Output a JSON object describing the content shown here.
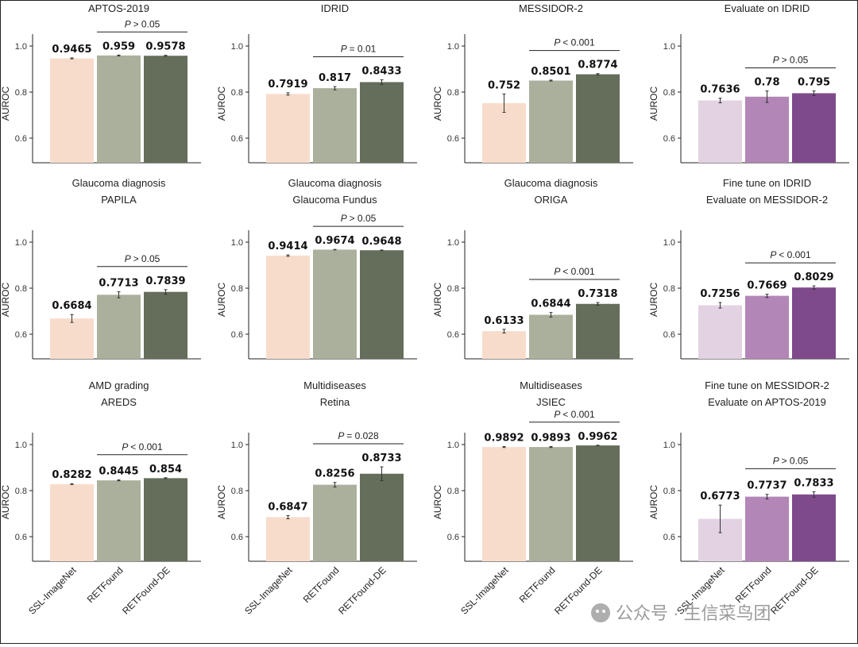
{
  "palettes": {
    "green": [
      "#f8dccb",
      "#aab09b",
      "#646e5a"
    ],
    "purple": [
      "#e2d2e2",
      "#b286b6",
      "#7f4a8c"
    ]
  },
  "watermark": "公众号 · 生信菜鸟团",
  "chart_data": [
    {
      "type": "bar",
      "title": [
        "APTOS-2019"
      ],
      "ylabel": "AUROC",
      "ylim": [
        0.5,
        1.0
      ],
      "yticks": [
        "0.6",
        "0.8",
        "1.0"
      ],
      "categories": [
        "SSL-ImageNet",
        "RETFound",
        "RETFound-DE"
      ],
      "values": [
        0.9465,
        0.959,
        0.9578
      ],
      "value_labels": [
        "0.9465",
        "0.959",
        "0.9578"
      ],
      "errors": [
        0.002,
        0.002,
        0.002
      ],
      "pvalue": "> 0.05",
      "palette": "green",
      "show_xlabels": false
    },
    {
      "type": "bar",
      "title": [
        "IDRID"
      ],
      "ylabel": "AUROC",
      "ylim": [
        0.5,
        1.0
      ],
      "yticks": [
        "0.6",
        "0.8",
        "1.0"
      ],
      "categories": [
        "SSL-ImageNet",
        "RETFound",
        "RETFound-DE"
      ],
      "values": [
        0.7919,
        0.817,
        0.8433
      ],
      "value_labels": [
        "0.7919",
        "0.817",
        "0.8433"
      ],
      "errors": [
        0.005,
        0.007,
        0.01
      ],
      "pvalue": "= 0.01",
      "palette": "green",
      "show_xlabels": false
    },
    {
      "type": "bar",
      "title": [
        "MESSIDOR-2"
      ],
      "ylabel": "AUROC",
      "ylim": [
        0.5,
        1.0
      ],
      "yticks": [
        "0.6",
        "0.8",
        "1.0"
      ],
      "categories": [
        "SSL-ImageNet",
        "RETFound",
        "RETFound-DE"
      ],
      "values": [
        0.752,
        0.8501,
        0.8774
      ],
      "value_labels": [
        "0.752",
        "0.8501",
        "0.8774"
      ],
      "errors": [
        0.04,
        0.002,
        0.003
      ],
      "pvalue": "< 0.001",
      "palette": "green",
      "show_xlabels": false
    },
    {
      "type": "bar",
      "title": [
        "Evaluate on IDRID"
      ],
      "ylabel": "AUROC",
      "ylim": [
        0.5,
        1.0
      ],
      "yticks": [
        "0.6",
        "0.8",
        "1.0"
      ],
      "categories": [
        "SSL-ImageNet",
        "RETFound",
        "RETFound-DE"
      ],
      "values": [
        0.7636,
        0.78,
        0.795
      ],
      "value_labels": [
        "0.7636",
        "0.78",
        "0.795"
      ],
      "errors": [
        0.01,
        0.025,
        0.01
      ],
      "pvalue": "> 0.05",
      "palette": "purple",
      "show_xlabels": false
    },
    {
      "type": "bar",
      "title": [
        "Glaucoma diagnosis",
        "PAPILA"
      ],
      "ylabel": "AUROC",
      "ylim": [
        0.5,
        1.0
      ],
      "yticks": [
        "0.6",
        "0.8",
        "1.0"
      ],
      "categories": [
        "SSL-ImageNet",
        "RETFound",
        "RETFound-DE"
      ],
      "values": [
        0.6684,
        0.7713,
        0.7839
      ],
      "value_labels": [
        "0.6684",
        "0.7713",
        "0.7839"
      ],
      "errors": [
        0.017,
        0.013,
        0.01
      ],
      "pvalue": "> 0.05",
      "palette": "green",
      "show_xlabels": false
    },
    {
      "type": "bar",
      "title": [
        "Glaucoma diagnosis",
        "Glaucoma Fundus"
      ],
      "ylabel": "AUROC",
      "ylim": [
        0.5,
        1.0
      ],
      "yticks": [
        "0.6",
        "0.8",
        "1.0"
      ],
      "categories": [
        "SSL-ImageNet",
        "RETFound",
        "RETFound-DE"
      ],
      "values": [
        0.9414,
        0.9674,
        0.9648
      ],
      "value_labels": [
        "0.9414",
        "0.9674",
        "0.9648"
      ],
      "errors": [
        0.003,
        0.001,
        0.001
      ],
      "pvalue": "> 0.05",
      "palette": "green",
      "show_xlabels": false
    },
    {
      "type": "bar",
      "title": [
        "Glaucoma diagnosis",
        "ORIGA"
      ],
      "ylabel": "AUROC",
      "ylim": [
        0.5,
        1.0
      ],
      "yticks": [
        "0.6",
        "0.8",
        "1.0"
      ],
      "categories": [
        "SSL-ImageNet",
        "RETFound",
        "RETFound-DE"
      ],
      "values": [
        0.6133,
        0.6844,
        0.7318
      ],
      "value_labels": [
        "0.6133",
        "0.6844",
        "0.7318"
      ],
      "errors": [
        0.008,
        0.01,
        0.006
      ],
      "pvalue": "< 0.001",
      "palette": "green",
      "show_xlabels": false
    },
    {
      "type": "bar",
      "title": [
        "Fine tune on IDRID",
        "Evaluate on MESSIDOR-2"
      ],
      "ylabel": "AUROC",
      "ylim": [
        0.5,
        1.0
      ],
      "yticks": [
        "0.6",
        "0.8",
        "1.0"
      ],
      "categories": [
        "SSL-ImageNet",
        "RETFound",
        "RETFound-DE"
      ],
      "values": [
        0.7256,
        0.7669,
        0.8029
      ],
      "value_labels": [
        "0.7256",
        "0.7669",
        "0.8029"
      ],
      "errors": [
        0.012,
        0.007,
        0.007
      ],
      "pvalue": "< 0.001",
      "palette": "purple",
      "show_xlabels": false
    },
    {
      "type": "bar",
      "title": [
        "AMD grading",
        "AREDS"
      ],
      "ylabel": "AUROC",
      "ylim": [
        0.5,
        1.0
      ],
      "yticks": [
        "0.6",
        "0.8",
        "1.0"
      ],
      "categories": [
        "SSL-ImageNet",
        "RETFound",
        "RETFound-DE"
      ],
      "values": [
        0.8282,
        0.8445,
        0.854
      ],
      "value_labels": [
        "0.8282",
        "0.8445",
        "0.854"
      ],
      "errors": [
        0.002,
        0.002,
        0.002
      ],
      "pvalue": "< 0.001",
      "palette": "green",
      "show_xlabels": true
    },
    {
      "type": "bar",
      "title": [
        "Multidiseases",
        "Retina"
      ],
      "ylabel": "AUROC",
      "ylim": [
        0.5,
        1.0
      ],
      "yticks": [
        "0.6",
        "0.8",
        "1.0"
      ],
      "categories": [
        "SSL-ImageNet",
        "RETFound",
        "RETFound-DE"
      ],
      "values": [
        0.6847,
        0.8256,
        0.8733
      ],
      "value_labels": [
        "0.6847",
        "0.8256",
        "0.8733"
      ],
      "errors": [
        0.007,
        0.01,
        0.03
      ],
      "pvalue": "= 0.028",
      "palette": "green",
      "show_xlabels": true
    },
    {
      "type": "bar",
      "title": [
        "Multidiseases",
        "JSIEC"
      ],
      "ylabel": "AUROC",
      "ylim": [
        0.5,
        1.0
      ],
      "yticks": [
        "0.6",
        "0.8",
        "1.0"
      ],
      "categories": [
        "SSL-ImageNet",
        "RETFound",
        "RETFound-DE"
      ],
      "values": [
        0.9892,
        0.9893,
        0.9962
      ],
      "value_labels": [
        "0.9892",
        "0.9893",
        "0.9962"
      ],
      "errors": [
        0.002,
        0.002,
        0.001
      ],
      "pvalue": "< 0.001",
      "palette": "green",
      "show_xlabels": true
    },
    {
      "type": "bar",
      "title": [
        "Fine tune on MESSIDOR-2",
        "Evaluate on APTOS-2019"
      ],
      "ylabel": "AUROC",
      "ylim": [
        0.5,
        1.0
      ],
      "yticks": [
        "0.6",
        "0.8",
        "1.0"
      ],
      "categories": [
        "SSL-ImageNet",
        "RETFound",
        "RETFound-DE"
      ],
      "values": [
        0.6773,
        0.7737,
        0.7833
      ],
      "value_labels": [
        "0.6773",
        "0.7737",
        "0.7833"
      ],
      "errors": [
        0.06,
        0.01,
        0.012
      ],
      "pvalue": "> 0.05",
      "palette": "purple",
      "show_xlabels": true
    }
  ]
}
